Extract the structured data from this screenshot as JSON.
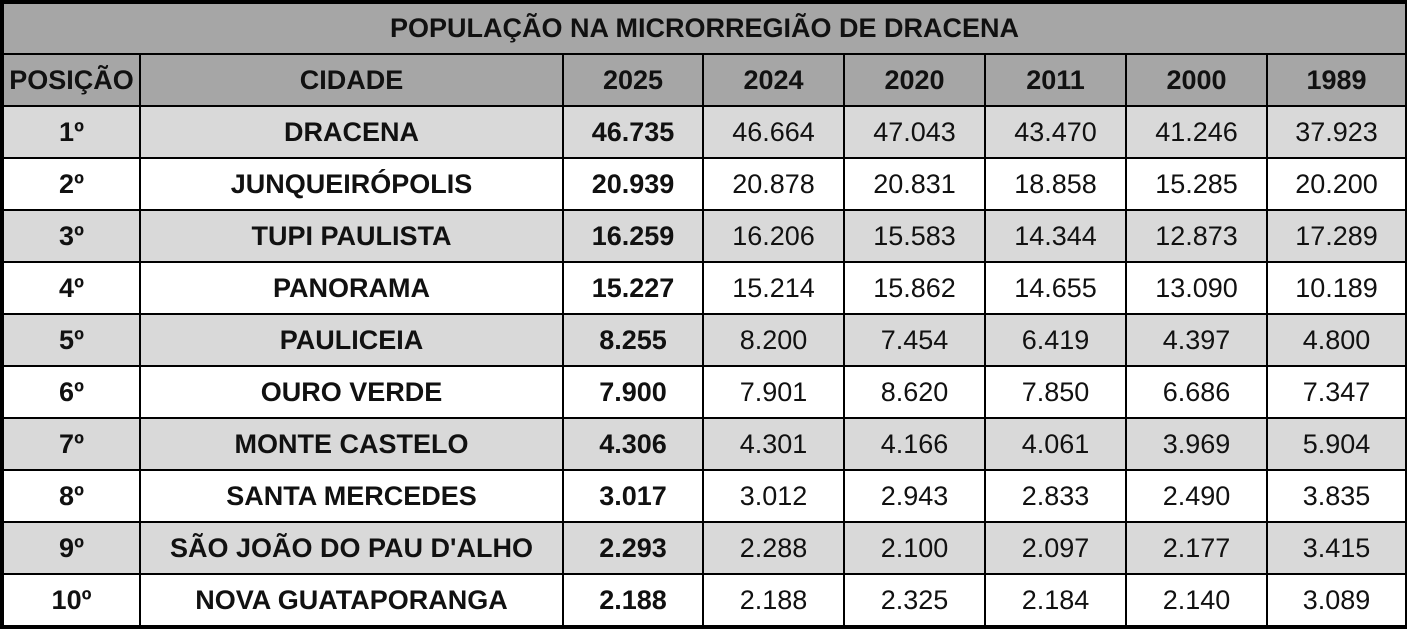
{
  "title": "POPULAÇÃO NA MICRORREGIÃO DE DRACENA",
  "columns": [
    "POSIÇÃO",
    "CIDADE",
    "2025",
    "2024",
    "2020",
    "2011",
    "2000",
    "1989"
  ],
  "rows": [
    {
      "pos": "1º",
      "city": "DRACENA",
      "v2025": "46.735",
      "v2024": "46.664",
      "v2020": "47.043",
      "v2011": "43.470",
      "v2000": "41.246",
      "v1989": "37.923"
    },
    {
      "pos": "2º",
      "city": "JUNQUEIRÓPOLIS",
      "v2025": "20.939",
      "v2024": "20.878",
      "v2020": "20.831",
      "v2011": "18.858",
      "v2000": "15.285",
      "v1989": "20.200"
    },
    {
      "pos": "3º",
      "city": "TUPI PAULISTA",
      "v2025": "16.259",
      "v2024": "16.206",
      "v2020": "15.583",
      "v2011": "14.344",
      "v2000": "12.873",
      "v1989": "17.289"
    },
    {
      "pos": "4º",
      "city": "PANORAMA",
      "v2025": "15.227",
      "v2024": "15.214",
      "v2020": "15.862",
      "v2011": "14.655",
      "v2000": "13.090",
      "v1989": "10.189"
    },
    {
      "pos": "5º",
      "city": "PAULICEIA",
      "v2025": "8.255",
      "v2024": "8.200",
      "v2020": "7.454",
      "v2011": "6.419",
      "v2000": "4.397",
      "v1989": "4.800"
    },
    {
      "pos": "6º",
      "city": "OURO VERDE",
      "v2025": "7.900",
      "v2024": "7.901",
      "v2020": "8.620",
      "v2011": "7.850",
      "v2000": "6.686",
      "v1989": "7.347"
    },
    {
      "pos": "7º",
      "city": "MONTE CASTELO",
      "v2025": "4.306",
      "v2024": "4.301",
      "v2020": "4.166",
      "v2011": "4.061",
      "v2000": "3.969",
      "v1989": "5.904"
    },
    {
      "pos": "8º",
      "city": "SANTA MERCEDES",
      "v2025": "3.017",
      "v2024": "3.012",
      "v2020": "2.943",
      "v2011": "2.833",
      "v2000": "2.490",
      "v1989": "3.835"
    },
    {
      "pos": "9º",
      "city": "SÃO JOÃO DO PAU D'ALHO",
      "v2025": "2.293",
      "v2024": "2.288",
      "v2020": "2.100",
      "v2011": "2.097",
      "v2000": "2.177",
      "v1989": "3.415"
    },
    {
      "pos": "10º",
      "city": "NOVA GUATAPORANGA",
      "v2025": "2.188",
      "v2024": "2.188",
      "v2020": "2.325",
      "v2011": "2.184",
      "v2000": "2.140",
      "v1989": "3.089"
    }
  ],
  "colors": {
    "header_bg": "#a6a6a6",
    "shaded_row_bg": "#d9d9d9",
    "plain_row_bg": "#ffffff",
    "border": "#000000"
  }
}
